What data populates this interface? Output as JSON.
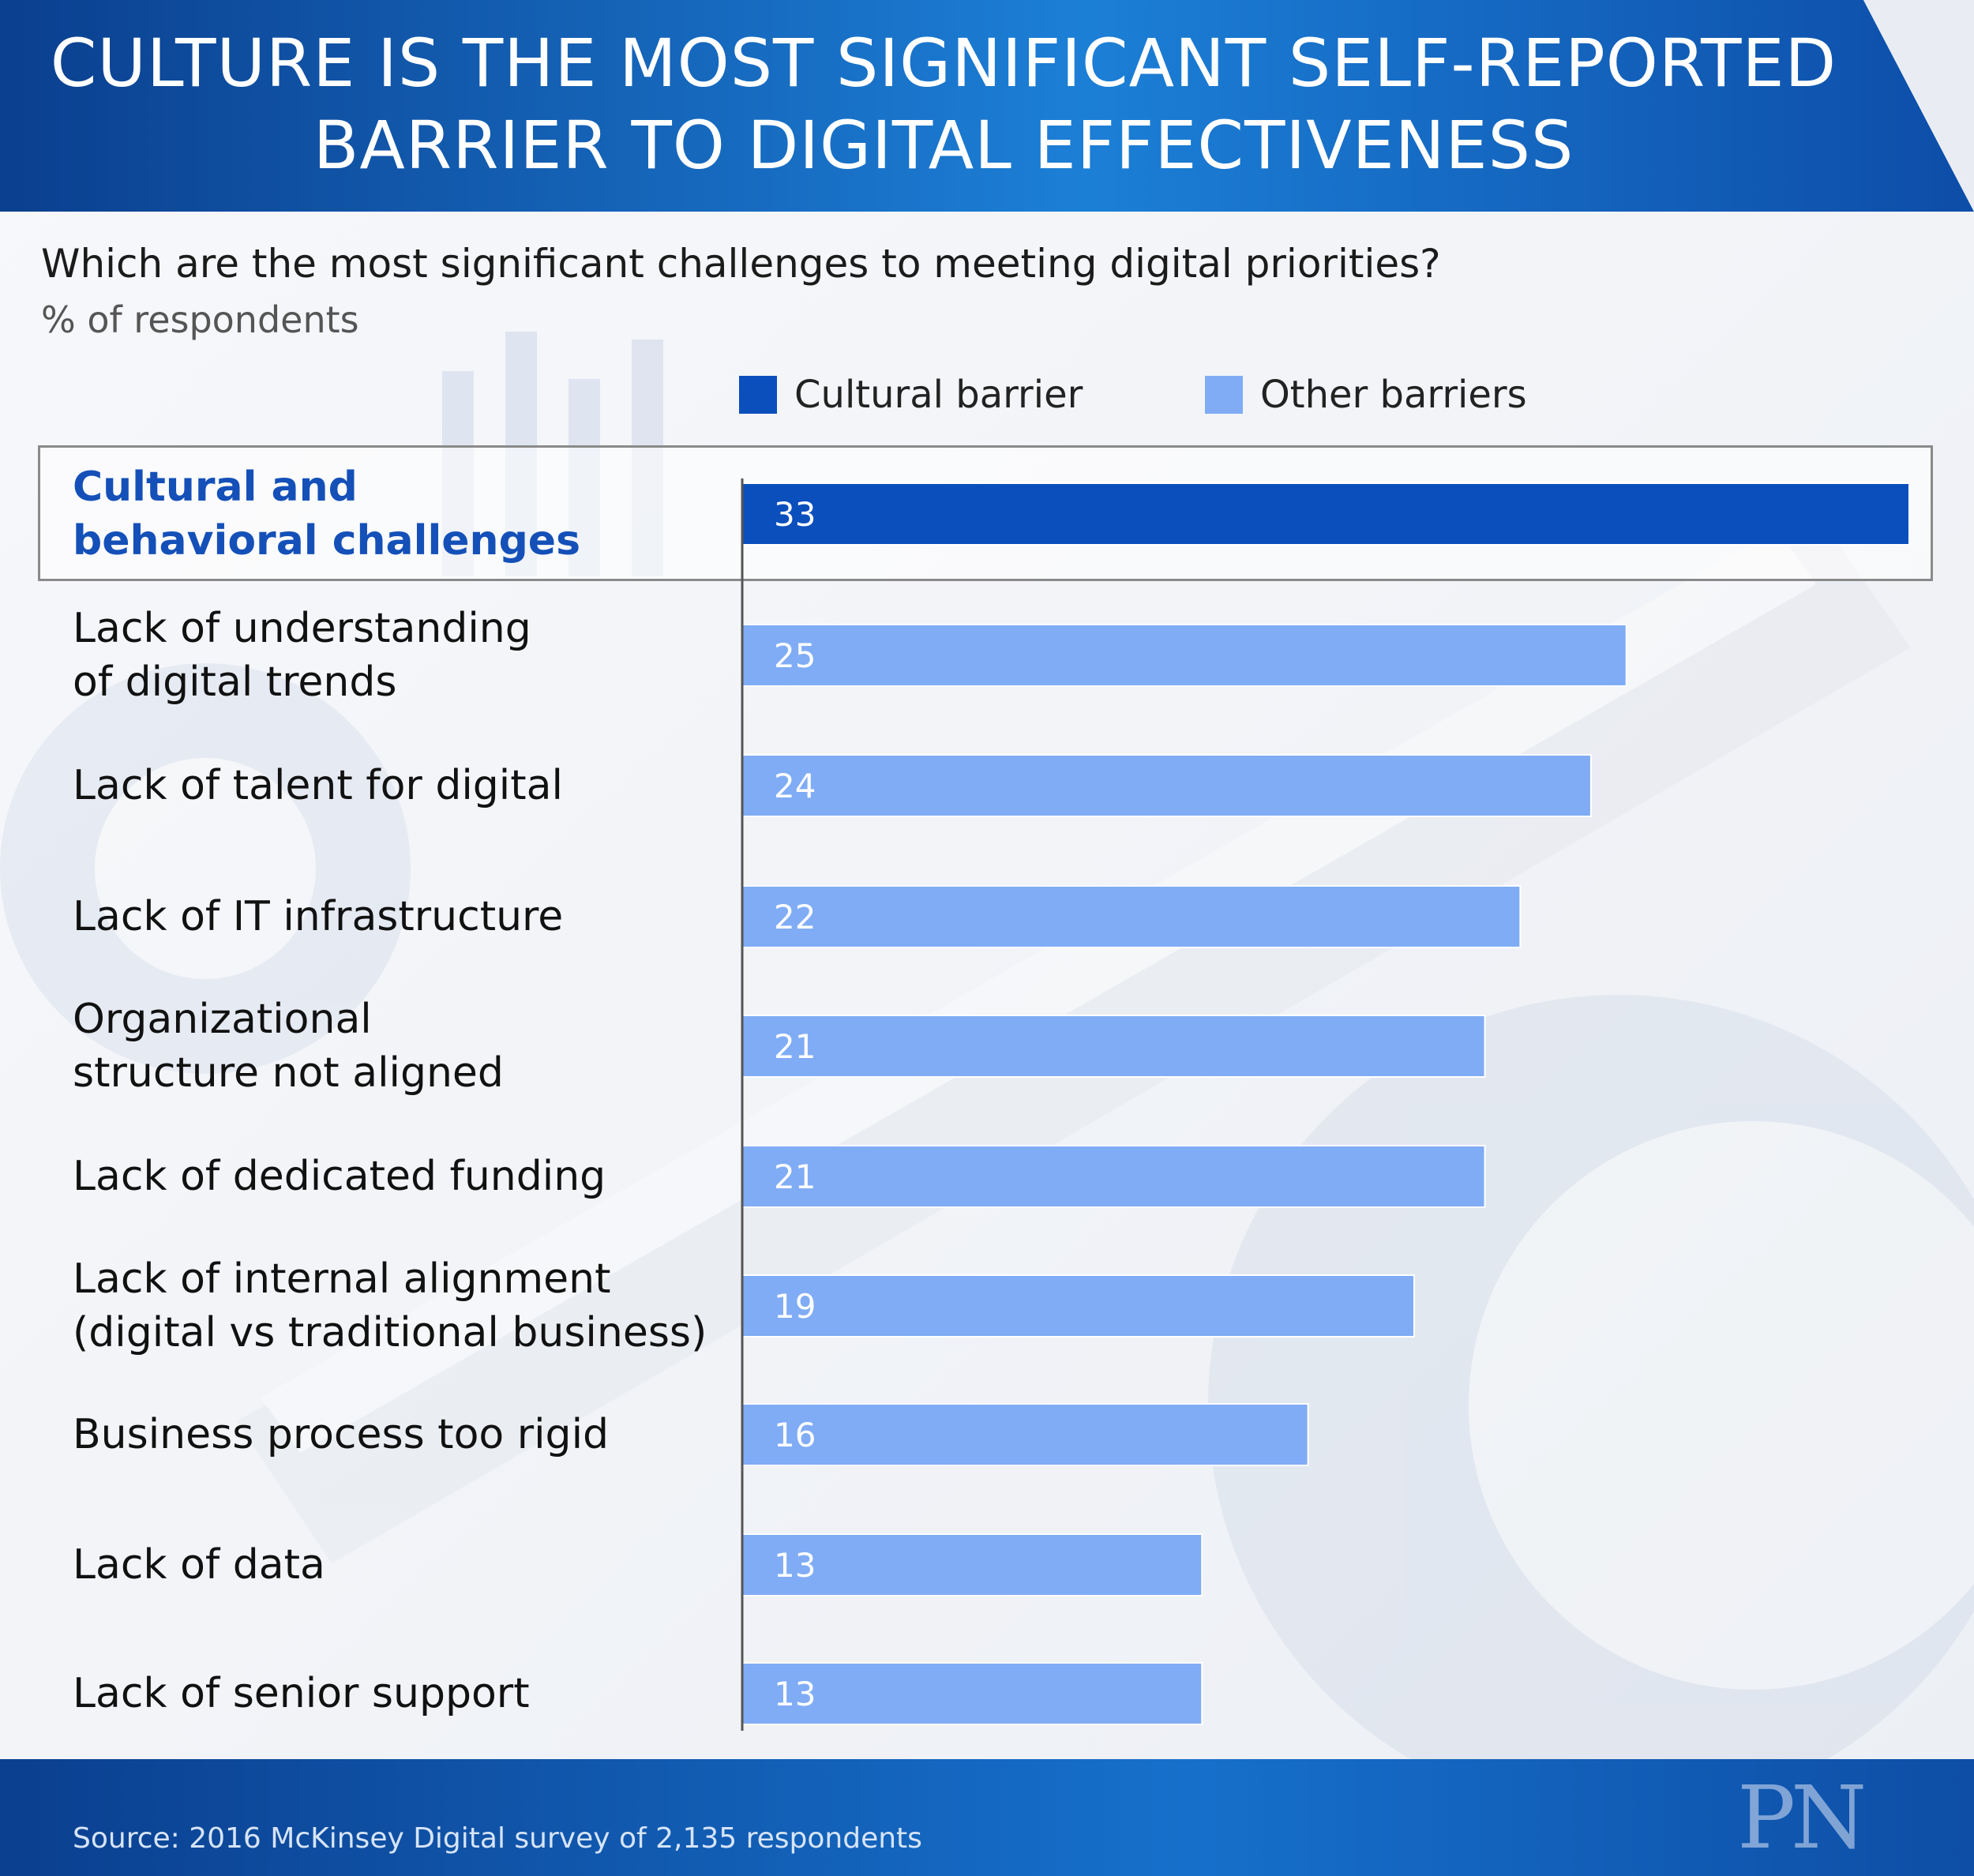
{
  "header": {
    "title_line1": "CULTURE IS THE MOST SIGNIFICANT SELF-REPORTED",
    "title_line2": "BARRIER TO DIGITAL EFFECTIVENESS"
  },
  "subtitle": "Which are the most significant challenges to meeting digital priorities?",
  "unit": "% of respondents",
  "colors": {
    "cultural": "#0b4fbd",
    "other": "#80acf5",
    "header_dark": "#0b3f8f",
    "header_light": "#1c7fd6"
  },
  "chart_data": {
    "type": "bar",
    "orientation": "horizontal",
    "categories": [
      "Cultural and behavioral challenges",
      "Lack of understanding of digital trends",
      "Lack of talent for digital",
      "Lack of IT infrastructure",
      "Organizational structure not aligned",
      "Lack of dedicated funding",
      "Lack of internal alignment (digital vs traditional business)",
      "Business process too rigid",
      "Lack of data",
      "Lack of senior support"
    ],
    "category_lines": [
      [
        "Cultural and",
        "behavioral challenges"
      ],
      [
        "Lack of understanding",
        "of digital trends"
      ],
      [
        "Lack of talent for digital"
      ],
      [
        "Lack of IT infrastructure"
      ],
      [
        "Organizational",
        "structure not aligned"
      ],
      [
        "Lack of dedicated funding"
      ],
      [
        "Lack of internal alignment",
        "(digital vs traditional business)"
      ],
      [
        "Business process too rigid"
      ],
      [
        "Lack of data"
      ],
      [
        "Lack of senior support"
      ]
    ],
    "values": [
      33,
      25,
      24,
      22,
      21,
      21,
      19,
      16,
      13,
      13
    ],
    "groups": [
      "Cultural barrier",
      "Other barriers",
      "Other barriers",
      "Other barriers",
      "Other barriers",
      "Other barriers",
      "Other barriers",
      "Other barriers",
      "Other barriers",
      "Other barriers"
    ],
    "legend": [
      "Cultural barrier",
      "Other barriers"
    ],
    "legend_position": "top",
    "xlim": [
      0,
      33
    ],
    "grid": false,
    "data_labels": true,
    "highlighted_category": "Cultural and behavioral challenges"
  },
  "footer": {
    "source": "Source: 2016 McKinsey Digital survey of 2,135 respondents"
  }
}
